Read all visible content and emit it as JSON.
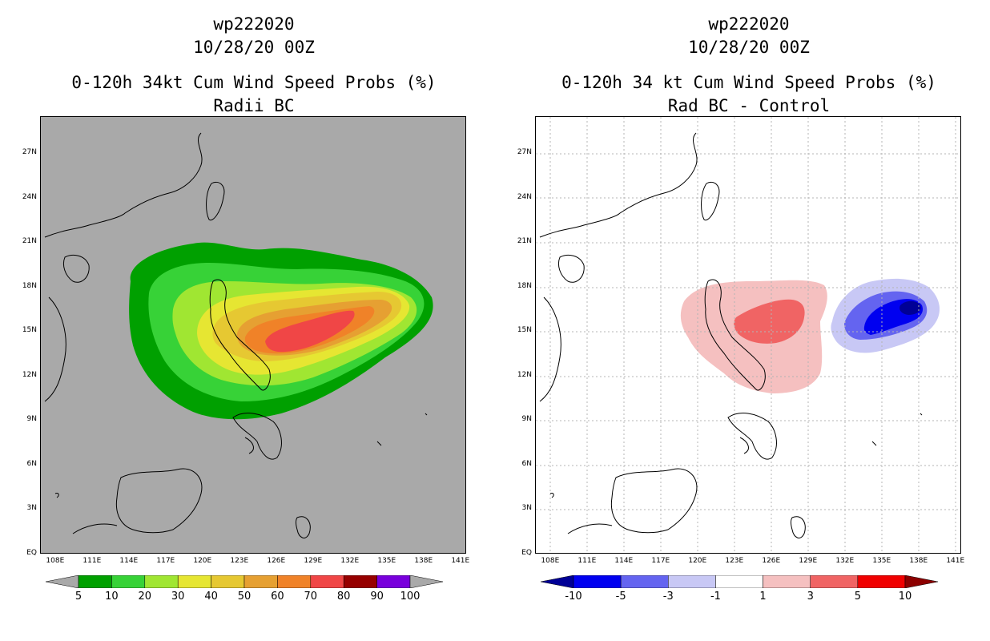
{
  "left_panel": {
    "title_line1": "wp222020",
    "title_line2": "10/28/20 00Z",
    "title_line3": "0-120h 34kt Cum Wind Speed Probs (%)",
    "title_line4": "Radii BC",
    "background_color": "#a9a9a9",
    "colorbar": {
      "labels": [
        "5",
        "10",
        "20",
        "30",
        "40",
        "50",
        "60",
        "70",
        "80",
        "90",
        "100"
      ],
      "colors": [
        "#a9a9a9",
        "#00a000",
        "#37d237",
        "#a0e632",
        "#e6e632",
        "#e6c832",
        "#e6a032",
        "#f08228",
        "#f04646",
        "#960000",
        "#7800dc",
        "#a9a9a9"
      ]
    }
  },
  "right_panel": {
    "title_line1": "wp222020",
    "title_line2": "10/28/20 00Z",
    "title_line3": "0-120h 34 kt Cum Wind Speed Probs (%)",
    "title_line4": "Rad BC - Control",
    "background_color": "#ffffff",
    "colorbar": {
      "labels": [
        "-10",
        "-5",
        "-3",
        "-1",
        "1",
        "3",
        "5",
        "10"
      ],
      "colors": [
        "#000096",
        "#0000f0",
        "#6464f0",
        "#c8c8f5",
        "#ffffff",
        "#f5c0c0",
        "#f06464",
        "#f00000",
        "#8c0000"
      ]
    }
  },
  "axes": {
    "lat_labels": [
      "27N",
      "24N",
      "21N",
      "18N",
      "15N",
      "12N",
      "9N",
      "6N",
      "3N",
      "EQ"
    ],
    "lon_labels": [
      "108E",
      "111E",
      "114E",
      "117E",
      "120E",
      "123E",
      "126E",
      "129E",
      "132E",
      "135E",
      "138E",
      "141E"
    ],
    "lat_values": [
      27,
      24,
      21,
      18,
      15,
      12,
      9,
      6,
      3,
      0
    ],
    "lon_values": [
      108,
      111,
      114,
      117,
      120,
      123,
      126,
      129,
      132,
      135,
      138,
      141
    ],
    "lon_range": [
      106.8,
      141.5
    ],
    "lat_range": [
      0,
      29.5
    ]
  }
}
